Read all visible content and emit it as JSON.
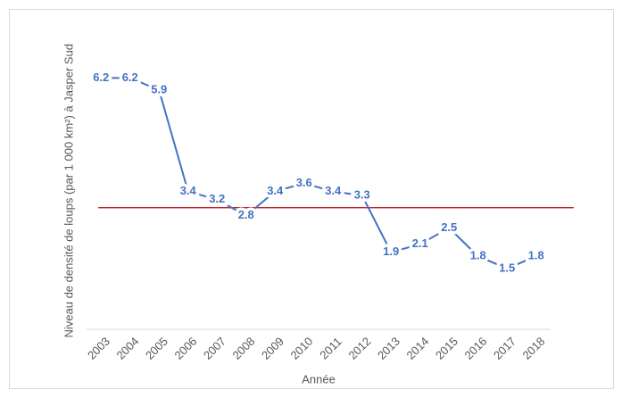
{
  "chart_data": {
    "type": "line",
    "x_label": "Année",
    "y_label": "Niveau de densité de loups (par 1 000 km²) à Jasper Sud",
    "categories": [
      "2003",
      "2004",
      "2005",
      "2006",
      "2007",
      "2008",
      "2009",
      "2010",
      "2011",
      "2012",
      "2013",
      "2014",
      "2015",
      "2016",
      "2017",
      "2018"
    ],
    "values": [
      6.2,
      6.2,
      5.9,
      3.4,
      3.2,
      2.8,
      3.4,
      3.6,
      3.4,
      3.3,
      1.9,
      2.1,
      2.5,
      1.8,
      1.5,
      1.8
    ],
    "color": "#4472c4",
    "ylim": [
      0,
      7
    ],
    "reference_line": {
      "value": 3,
      "color": "#c00000"
    },
    "grid": false
  }
}
